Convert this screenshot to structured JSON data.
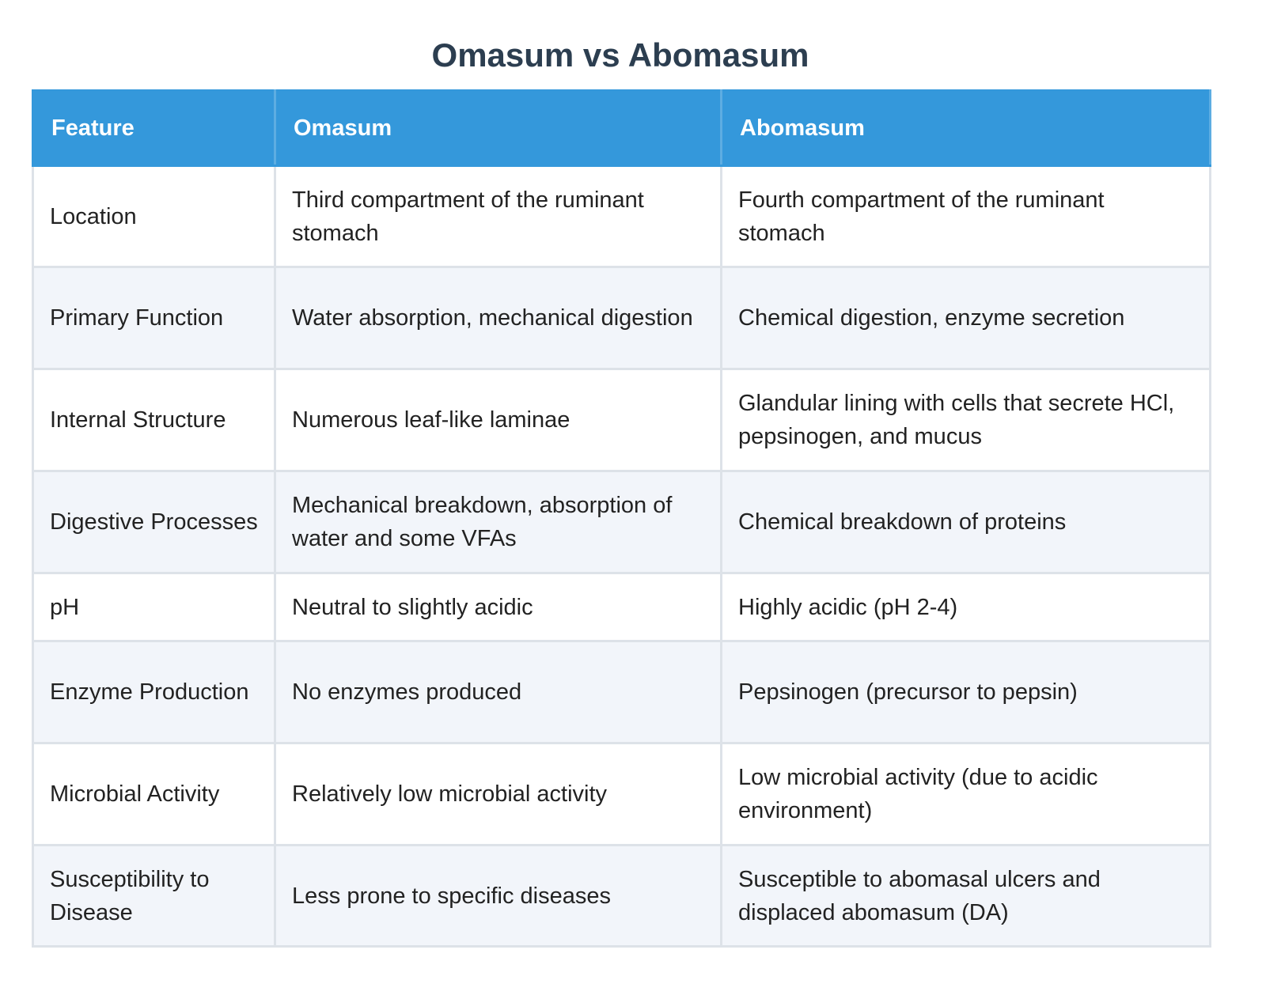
{
  "header": {
    "title": "Omasum vs Abomasum"
  },
  "table": {
    "columns": [
      "Feature",
      "Omasum",
      "Abomasum"
    ],
    "rows": [
      [
        "Location",
        "Third compartment of the ruminant stomach",
        "Fourth compartment of the ruminant stomach"
      ],
      [
        "Primary Function",
        "Water absorption, mechanical digestion",
        "Chemical digestion, enzyme secretion"
      ],
      [
        "Internal Structure",
        "Numerous leaf-like laminae",
        "Glandular lining with cells that secrete HCl, pepsinogen, and mucus"
      ],
      [
        "Digestive Processes",
        "Mechanical breakdown, absorption of water and some VFAs",
        "Chemical breakdown of proteins"
      ],
      [
        "pH",
        "Neutral to slightly acidic",
        "Highly acidic (pH 2-4)"
      ],
      [
        "Enzyme Production",
        "No enzymes produced",
        "Pepsinogen (precursor to pepsin)"
      ],
      [
        "Microbial Activity",
        "Relatively low microbial activity",
        "Low microbial activity (due to acidic environment)"
      ],
      [
        "Susceptibility to Disease",
        "Less prone to specific diseases",
        "Susceptible to abomasal ulcers and displaced abomasum (DA)"
      ]
    ]
  }
}
